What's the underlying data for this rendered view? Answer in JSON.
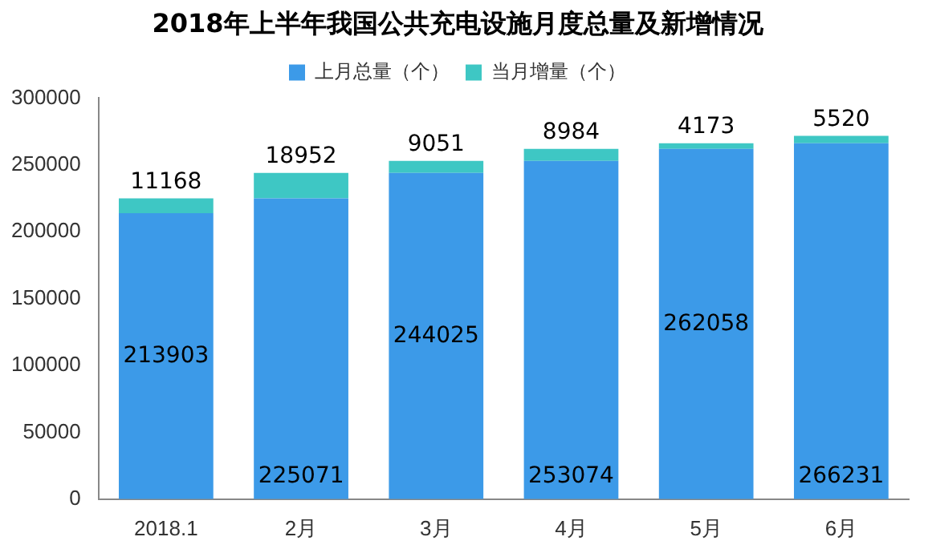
{
  "chart_data": {
    "type": "bar",
    "title": "2018年上半年我国公共充电设施月度总量及新增情况",
    "categories": [
      "2018.1",
      "2月",
      "3月",
      "4月",
      "5月",
      "6月"
    ],
    "stacked": true,
    "data_labels": true,
    "legend": "top",
    "grid": false,
    "ylim": [
      0,
      300000
    ],
    "yticks": [
      0,
      50000,
      100000,
      150000,
      200000,
      250000,
      300000
    ],
    "series": [
      {
        "name": "上月总量（个）",
        "color": "#3c9ae8",
        "values": [
          213903,
          225071,
          244025,
          253074,
          262058,
          266231
        ]
      },
      {
        "name": "当月增量（个）",
        "color": "#3ec7c4",
        "values": [
          11168,
          18952,
          9051,
          8984,
          4173,
          5520
        ]
      }
    ]
  }
}
